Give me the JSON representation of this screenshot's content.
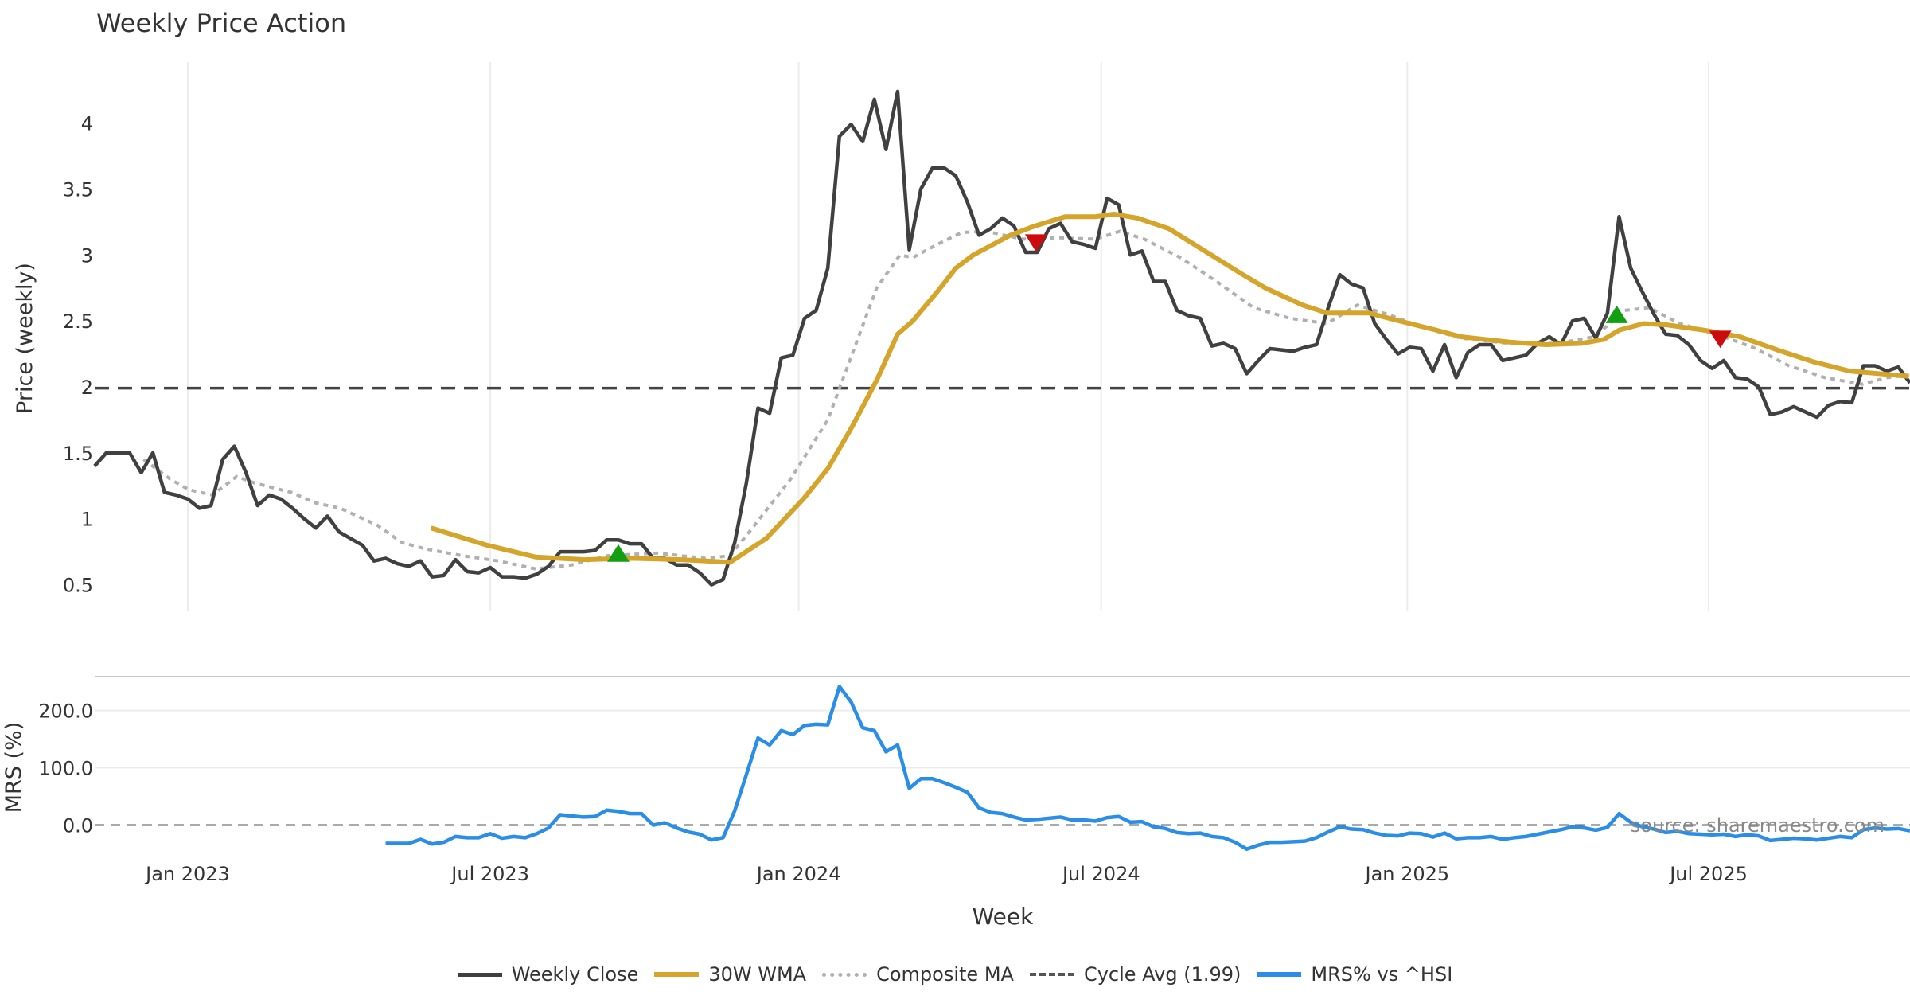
{
  "chart_data": {
    "type": "line",
    "title": "Weekly Price Action",
    "xlabel": "Week",
    "ylabel": "Price (weekly)",
    "ylim": [
      0.27,
      4.45
    ],
    "yticks": [
      "0.5",
      "1",
      "1.5",
      "2",
      "2.5",
      "3",
      "3.5",
      "4"
    ],
    "ytick_values": [
      0.5,
      1,
      1.5,
      2,
      2.5,
      3,
      3.5,
      4
    ],
    "xtick_labels": [
      "Jan 2023",
      "Jul 2023",
      "Jan 2024",
      "Jul 2024",
      "Jan 2025",
      "Jul 2025"
    ],
    "xtick_week_index": [
      8,
      34,
      60.5,
      86.5,
      112.8,
      138.7
    ],
    "grid": true,
    "legend_position": "bottom-center",
    "cycle_avg": 1.99,
    "weekly_close": [
      1.4,
      1.5,
      1.5,
      1.5,
      1.35,
      1.5,
      1.2,
      1.18,
      1.15,
      1.08,
      1.1,
      1.45,
      1.55,
      1.35,
      1.1,
      1.18,
      1.15,
      1.08,
      1.0,
      0.93,
      1.02,
      0.9,
      0.85,
      0.8,
      0.68,
      0.7,
      0.66,
      0.64,
      0.68,
      0.56,
      0.57,
      0.69,
      0.6,
      0.59,
      0.63,
      0.56,
      0.56,
      0.55,
      0.58,
      0.64,
      0.75,
      0.75,
      0.75,
      0.76,
      0.84,
      0.84,
      0.81,
      0.81,
      0.7,
      0.7,
      0.65,
      0.65,
      0.59,
      0.5,
      0.54,
      0.82,
      1.27,
      1.84,
      1.8,
      2.22,
      2.24,
      2.52,
      2.58,
      2.9,
      3.9,
      3.99,
      3.86,
      4.18,
      3.8,
      4.24,
      3.04,
      3.5,
      3.66,
      3.66,
      3.6,
      3.4,
      3.15,
      3.2,
      3.28,
      3.22,
      3.02,
      3.02,
      3.2,
      3.24,
      3.1,
      3.08,
      3.05,
      3.43,
      3.38,
      3.0,
      3.03,
      2.8,
      2.8,
      2.58,
      2.54,
      2.52,
      2.31,
      2.33,
      2.29,
      2.1,
      2.2,
      2.29,
      2.28,
      2.27,
      2.3,
      2.32,
      2.6,
      2.85,
      2.78,
      2.75,
      2.48,
      2.36,
      2.25,
      2.3,
      2.29,
      2.12,
      2.32,
      2.07,
      2.26,
      2.32,
      2.32,
      2.2,
      2.22,
      2.24,
      2.33,
      2.38,
      2.32,
      2.5,
      2.52,
      2.37,
      2.56,
      3.29,
      2.9,
      2.72,
      2.55,
      2.4,
      2.39,
      2.32,
      2.2,
      2.14,
      2.2,
      2.07,
      2.06,
      2.0,
      1.79,
      1.81,
      1.85,
      1.81,
      1.77,
      1.86,
      1.89,
      1.88,
      2.16,
      2.16,
      2.12,
      2.15,
      2.03
    ],
    "wma_30w": [
      [
        28.9,
        0.93
      ],
      [
        33.7,
        0.8
      ],
      [
        37.9,
        0.71
      ],
      [
        42.1,
        0.69
      ],
      [
        46.2,
        0.7
      ],
      [
        50.4,
        0.69
      ],
      [
        54.6,
        0.67
      ],
      [
        57.7,
        0.85
      ],
      [
        60.9,
        1.15
      ],
      [
        63.0,
        1.38
      ],
      [
        65.1,
        1.7
      ],
      [
        67.2,
        2.05
      ],
      [
        69.0,
        2.4
      ],
      [
        70.3,
        2.5
      ],
      [
        72.4,
        2.72
      ],
      [
        74.0,
        2.9
      ],
      [
        75.5,
        3.0
      ],
      [
        78.7,
        3.15
      ],
      [
        80.8,
        3.22
      ],
      [
        83.4,
        3.29
      ],
      [
        86.0,
        3.29
      ],
      [
        87.6,
        3.31
      ],
      [
        89.6,
        3.28
      ],
      [
        92.3,
        3.2
      ],
      [
        95.4,
        3.03
      ],
      [
        98.5,
        2.86
      ],
      [
        100.6,
        2.75
      ],
      [
        103.8,
        2.62
      ],
      [
        105.9,
        2.56
      ],
      [
        109.5,
        2.56
      ],
      [
        112.1,
        2.5
      ],
      [
        115.3,
        2.43
      ],
      [
        117.4,
        2.38
      ],
      [
        121.5,
        2.34
      ],
      [
        124.7,
        2.32
      ],
      [
        127.8,
        2.33
      ],
      [
        129.7,
        2.36
      ],
      [
        131.0,
        2.43
      ],
      [
        133.1,
        2.48
      ],
      [
        135.1,
        2.47
      ],
      [
        138.3,
        2.43
      ],
      [
        141.4,
        2.38
      ],
      [
        144.6,
        2.28
      ],
      [
        147.7,
        2.19
      ],
      [
        150.8,
        2.12
      ],
      [
        153.4,
        2.1
      ],
      [
        155.9,
        2.08
      ]
    ],
    "composite_ma": [
      [
        4.2,
        1.45
      ],
      [
        6.5,
        1.3
      ],
      [
        8.1,
        1.22
      ],
      [
        10.1,
        1.18
      ],
      [
        12.2,
        1.32
      ],
      [
        13.8,
        1.27
      ],
      [
        16.9,
        1.2
      ],
      [
        19.0,
        1.12
      ],
      [
        21.1,
        1.08
      ],
      [
        24.3,
        0.95
      ],
      [
        26.4,
        0.82
      ],
      [
        28.5,
        0.77
      ],
      [
        31.6,
        0.72
      ],
      [
        34.7,
        0.68
      ],
      [
        37.9,
        0.62
      ],
      [
        41.0,
        0.65
      ],
      [
        44.1,
        0.72
      ],
      [
        48.3,
        0.74
      ],
      [
        52.5,
        0.7
      ],
      [
        54.6,
        0.72
      ],
      [
        56.7,
        0.95
      ],
      [
        59.8,
        1.3
      ],
      [
        63.0,
        1.75
      ],
      [
        65.1,
        2.25
      ],
      [
        67.2,
        2.75
      ],
      [
        69.2,
        3.0
      ],
      [
        70.3,
        2.98
      ],
      [
        72.4,
        3.08
      ],
      [
        74.5,
        3.17
      ],
      [
        76.6,
        3.18
      ],
      [
        79.7,
        3.12
      ],
      [
        82.8,
        3.13
      ],
      [
        86.0,
        3.12
      ],
      [
        88.1,
        3.18
      ],
      [
        90.2,
        3.12
      ],
      [
        93.3,
        2.98
      ],
      [
        96.4,
        2.8
      ],
      [
        99.6,
        2.6
      ],
      [
        102.7,
        2.52
      ],
      [
        105.9,
        2.48
      ],
      [
        108.5,
        2.62
      ],
      [
        111.1,
        2.55
      ],
      [
        114.2,
        2.45
      ],
      [
        117.4,
        2.37
      ],
      [
        121.5,
        2.33
      ],
      [
        125.7,
        2.33
      ],
      [
        128.9,
        2.38
      ],
      [
        131.5,
        2.58
      ],
      [
        133.6,
        2.6
      ],
      [
        136.2,
        2.48
      ],
      [
        139.3,
        2.4
      ],
      [
        142.5,
        2.3
      ],
      [
        145.6,
        2.16
      ],
      [
        148.7,
        2.07
      ],
      [
        151.9,
        2.02
      ],
      [
        154.0,
        2.07
      ],
      [
        155.9,
        2.09
      ]
    ],
    "signals": [
      {
        "type": "buy",
        "week_index": 45,
        "value": 0.74
      },
      {
        "type": "sell",
        "week_index": 80.9,
        "value": 3.09
      },
      {
        "type": "buy",
        "week_index": 130.8,
        "value": 2.55
      },
      {
        "type": "sell",
        "week_index": 139.7,
        "value": 2.36
      }
    ],
    "mrs_panel": {
      "ylabel": "MRS (%)",
      "yticks": [
        "0.0",
        "100.0",
        "200.0"
      ],
      "ytick_values": [
        0,
        100,
        200
      ],
      "ylim": [
        -60,
        260
      ],
      "values": [
        -32,
        -32,
        -32,
        -25,
        -33,
        -30,
        -20,
        -22,
        -22,
        -15,
        -23,
        -20,
        -22,
        -15,
        -5,
        18,
        16,
        14,
        15,
        26,
        24,
        20,
        20,
        0,
        4,
        -5,
        -12,
        -16,
        -26,
        -22,
        25,
        88,
        152,
        140,
        165,
        158,
        174,
        176,
        175,
        242,
        215,
        170,
        165,
        128,
        140,
        64,
        81,
        81,
        74,
        66,
        57,
        30,
        22,
        20,
        14,
        9,
        10,
        12,
        14,
        9,
        9,
        7,
        13,
        15,
        5,
        6,
        -3,
        -6,
        -13,
        -15,
        -14,
        -20,
        -22,
        -30,
        -42,
        -35,
        -30,
        -30,
        -29,
        -28,
        -22,
        -12,
        -3,
        -7,
        -8,
        -14,
        -18,
        -19,
        -14,
        -15,
        -21,
        -14,
        -24,
        -22,
        -22,
        -20,
        -25,
        -22,
        -20,
        -16,
        -12,
        -8,
        -3,
        -5,
        -9,
        -4,
        20,
        5,
        -3,
        -7,
        -13,
        -11,
        -15,
        -16,
        -17,
        -16,
        -20,
        -17,
        -19,
        -27,
        -25,
        -23,
        -24,
        -26,
        -23,
        -20,
        -22,
        -8,
        -5,
        -7,
        -6,
        -10
      ]
    },
    "source": "source: sharemaestro.com",
    "legend": [
      "Weekly Close",
      "30W WMA",
      "Composite MA",
      "Cycle Avg (1.99)",
      "MRS% vs ^HSI"
    ],
    "colors": {
      "close": "#404040",
      "wma": "#d4a52a",
      "composite": "#b0b0b0",
      "cycle": "#444444",
      "mrs": "#2a8ee8",
      "buy": "#12a012",
      "sell": "#cc0c0c"
    }
  }
}
